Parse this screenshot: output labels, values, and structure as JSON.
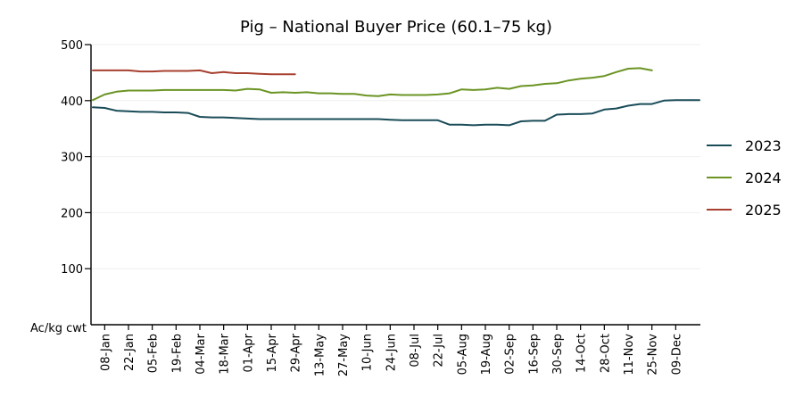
{
  "chart_data": {
    "type": "line",
    "title": "Pig – National Buyer Price (60.1–75 kg)",
    "ylabel": "Ac/kg cwt",
    "xlabel": "",
    "ylim": [
      0,
      500
    ],
    "yticks": [
      100,
      200,
      300,
      400,
      500
    ],
    "grid": true,
    "legend_position": "right",
    "x_tick_labels": [
      "08-Jan",
      "22-Jan",
      "05-Feb",
      "19-Feb",
      "04-Mar",
      "18-Mar",
      "01-Apr",
      "15-Apr",
      "29-Apr",
      "13-May",
      "27-May",
      "10-Jun",
      "24-Jun",
      "08-Jul",
      "22-Jul",
      "05-Aug",
      "19-Aug",
      "02-Sep",
      "16-Sep",
      "30-Sep",
      "14-Oct",
      "28-Oct",
      "11-Nov",
      "25-Nov",
      "09-Dec"
    ],
    "x_week_range": [
      1,
      52
    ],
    "series": [
      {
        "name": "2023",
        "color": "#1a4c58",
        "x": [
          1,
          2,
          3,
          4,
          5,
          6,
          7,
          8,
          9,
          10,
          11,
          12,
          13,
          14,
          15,
          16,
          17,
          18,
          19,
          20,
          21,
          22,
          23,
          24,
          25,
          26,
          27,
          28,
          29,
          30,
          31,
          32,
          33,
          34,
          35,
          36,
          37,
          38,
          39,
          40,
          41,
          42,
          43,
          44,
          45,
          46,
          47,
          48,
          49,
          50,
          51,
          52
        ],
        "values": [
          388,
          387,
          382,
          381,
          380,
          380,
          379,
          379,
          378,
          371,
          370,
          370,
          369,
          368,
          367,
          367,
          367,
          367,
          367,
          367,
          367,
          367,
          367,
          367,
          367,
          366,
          365,
          365,
          365,
          365,
          357,
          357,
          356,
          357,
          357,
          356,
          363,
          364,
          364,
          375,
          376,
          376,
          377,
          384,
          386,
          391,
          394,
          394,
          400,
          401,
          401,
          401
        ]
      },
      {
        "name": "2024",
        "color": "#6b9424",
        "x": [
          1,
          2,
          3,
          4,
          5,
          6,
          7,
          8,
          9,
          10,
          11,
          12,
          13,
          14,
          15,
          16,
          17,
          18,
          19,
          20,
          21,
          22,
          23,
          24,
          25,
          26,
          27,
          28,
          29,
          30,
          31,
          32,
          33,
          34,
          35,
          36,
          37,
          38,
          39,
          40,
          41,
          42,
          43,
          44,
          45,
          46,
          47,
          48,
          49,
          50,
          51,
          52
        ],
        "values": [
          401,
          411,
          416,
          418,
          418,
          418,
          419,
          419,
          419,
          419,
          419,
          419,
          418,
          421,
          420,
          414,
          415,
          414,
          415,
          413,
          413,
          412,
          412,
          409,
          408,
          411,
          410,
          410,
          410,
          411,
          413,
          420,
          419,
          420,
          423,
          421,
          426,
          427,
          430,
          431,
          436,
          439,
          441,
          444,
          451,
          457,
          458,
          454,
          454,
          454,
          454,
          454
        ],
        "visible_points": 48
      },
      {
        "name": "2025",
        "color": "#a84030",
        "x": [
          1,
          2,
          3,
          4,
          5,
          6,
          7,
          8,
          9,
          10,
          11,
          12,
          13,
          14,
          15,
          16,
          17,
          18
        ],
        "values": [
          454,
          454,
          454,
          454,
          452,
          452,
          453,
          453,
          453,
          454,
          449,
          451,
          449,
          449,
          448,
          447,
          447,
          447
        ],
        "visible_points": 18
      }
    ]
  }
}
